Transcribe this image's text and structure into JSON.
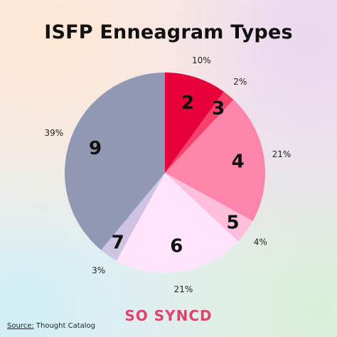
{
  "header": {
    "title": "ISFP Enneagram Types"
  },
  "chart_data": {
    "type": "pie",
    "title": "ISFP Enneagram Types",
    "start": "top",
    "direction": "clockwise",
    "slices": [
      {
        "label": "2",
        "value": 10,
        "value_label": "10%",
        "color": "#e8003a"
      },
      {
        "label": "3",
        "value": 2,
        "value_label": "2%",
        "color": "#f7416a"
      },
      {
        "label": "4",
        "value": 21,
        "value_label": "21%",
        "color": "#ff86ab"
      },
      {
        "label": "5",
        "value": 4,
        "value_label": "4%",
        "color": "#ffbfdc"
      },
      {
        "label": "6",
        "value": 21,
        "value_label": "21%",
        "color": "#ffe4fb"
      },
      {
        "label": "7",
        "value": 3,
        "value_label": "3%",
        "color": "#cfc3e3"
      },
      {
        "label": "9",
        "value": 39,
        "value_label": "39%",
        "color": "#9198b3"
      }
    ]
  },
  "footer": {
    "source_label": "Source:",
    "source_text": " Thought Catalog",
    "brand": "SO SYNCD",
    "brand_color": "#e0426b"
  }
}
